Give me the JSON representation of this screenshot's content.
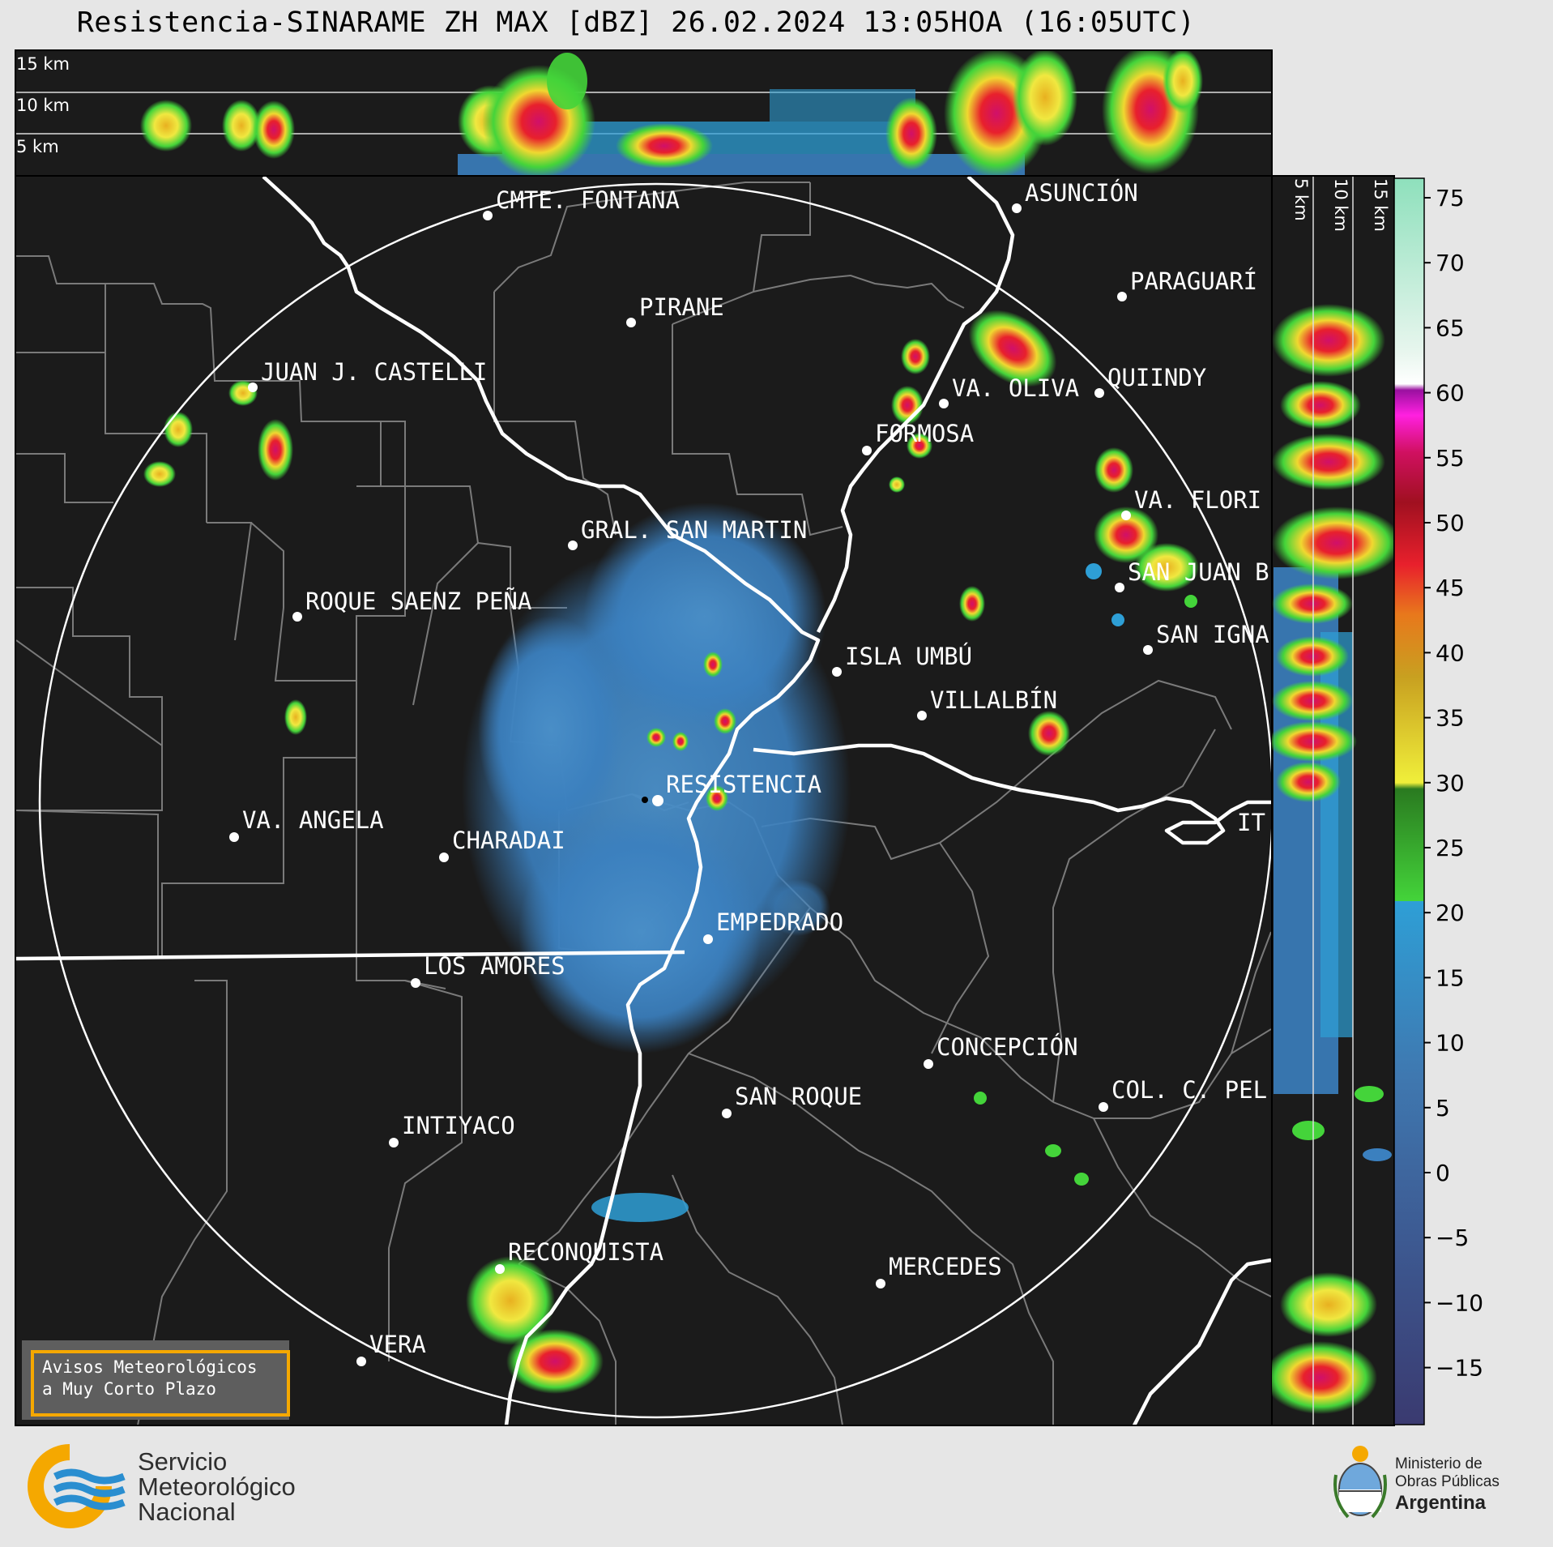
{
  "header": {
    "title": "Resistencia-SINARAME ZH MAX [dBZ] 26.02.2024 13:05HOA (16:05UTC)"
  },
  "map": {
    "radar_site": "RESISTENCIA",
    "cities": [
      {
        "name": "CMTE. FONTANA"
      },
      {
        "name": "ASUNCIÓN"
      },
      {
        "name": "PIRANE"
      },
      {
        "name": "PARAGUARÍ"
      },
      {
        "name": "JUAN J. CASTELLI"
      },
      {
        "name": "QUIINDY"
      },
      {
        "name": "VA. OLIVA"
      },
      {
        "name": "FORMOSA"
      },
      {
        "name": "VA. FLORI"
      },
      {
        "name": "GRAL. SAN MARTIN"
      },
      {
        "name": "SAN JUAN B"
      },
      {
        "name": "ROQUE SAENZ PEÑA"
      },
      {
        "name": "SAN IGNA"
      },
      {
        "name": "ISLA UMBÚ"
      },
      {
        "name": "VILLALBÍN"
      },
      {
        "name": "RESISTENCIA"
      },
      {
        "name": "VA. ANGELA"
      },
      {
        "name": "CHARADAI"
      },
      {
        "name": "IT"
      },
      {
        "name": "EMPEDRADO"
      },
      {
        "name": "LOS AMORES"
      },
      {
        "name": "CONCEPCIÓN"
      },
      {
        "name": "SAN ROQUE"
      },
      {
        "name": "COL. C. PEL"
      },
      {
        "name": "INTIYACO"
      },
      {
        "name": "RECONQUISTA"
      },
      {
        "name": "MERCEDES"
      },
      {
        "name": "VERA"
      }
    ]
  },
  "top_profile": {
    "height_labels": [
      "15 km",
      "10 km",
      "5 km"
    ]
  },
  "side_profile": {
    "height_labels": [
      "5 km",
      "10 km",
      "15 km"
    ]
  },
  "colorbar": {
    "unit": "dBZ",
    "ticks": [
      "75",
      "70",
      "65",
      "60",
      "55",
      "50",
      "45",
      "40",
      "35",
      "30",
      "25",
      "20",
      "15",
      "10",
      "5",
      "0",
      "−5",
      "−10",
      "−15"
    ]
  },
  "warning": {
    "line1": "Avisos Meteorológicos",
    "line2": "a Muy Corto Plazo"
  },
  "footer": {
    "smn_line1": "Servicio",
    "smn_line2": "Meteorológico",
    "smn_line3": "Nacional",
    "ministry_line1": "Ministerio de",
    "ministry_line2": "Obras Públicas",
    "ministry_line3": "Argentina"
  },
  "colors": {
    "background": "#1b1b1b",
    "page": "#e6e6e6",
    "warning_border": "#f5a800"
  }
}
